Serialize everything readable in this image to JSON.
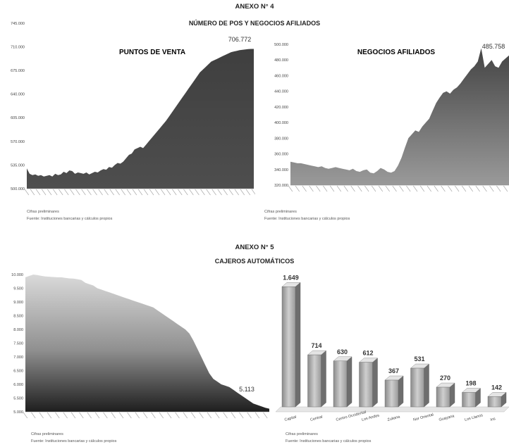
{
  "anexo4": {
    "heading": "ANEXO N° 4",
    "subheading": "NÚMERO DE POS Y NEGOCIOS AFILIADOS",
    "note1": "Cifras preliminares",
    "note2": "Fuente: Instituciones bancarias y cálculos propios",
    "note3": "Cifras preliminares",
    "note4": "Fuente: Instituciones bancarias y cálculos propios"
  },
  "anexo5": {
    "heading": "ANEXO N° 5",
    "subheading": "CAJEROS AUTOMÁTICOS",
    "note1": "Cifras preliminares",
    "note2": "Fuente: Instituciones bancarias y cálculos propios",
    "note3": "Cifras preliminares",
    "note4": "Fuente: Instituciones bancarias y cálculos propios"
  },
  "colors": {
    "area_dark": "#505050",
    "area_light": "#cfcfcf",
    "bar_face": "#bdbdbd"
  },
  "chart_data": [
    {
      "type": "area",
      "title": "PUNTOS DE VENTA",
      "ylim": [
        500000,
        750000
      ],
      "yticks": [
        500000,
        535000,
        570000,
        605000,
        640000,
        675000,
        710000,
        745000
      ],
      "ytick_labels": [
        "500.000",
        "535.000",
        "570.000",
        "605.000",
        "640.000",
        "675.000",
        "710.000",
        "745.000"
      ],
      "annotation": "706.772",
      "values": [
        530000,
        522000,
        520000,
        521000,
        519000,
        520000,
        518000,
        519000,
        520000,
        518000,
        522000,
        520000,
        521000,
        525000,
        523000,
        527000,
        526000,
        522000,
        524000,
        523000,
        522000,
        524000,
        521000,
        523000,
        525000,
        524000,
        527000,
        529000,
        528000,
        532000,
        531000,
        535000,
        538000,
        537000,
        540000,
        545000,
        550000,
        552000,
        558000,
        560000,
        562000,
        560000,
        565000,
        570000,
        575000,
        580000,
        585000,
        590000,
        595000,
        600000,
        606000,
        612000,
        618000,
        624000,
        630000,
        636000,
        642000,
        648000,
        654000,
        660000,
        666000,
        672000,
        676000,
        680000,
        684000,
        688000,
        690000,
        692000,
        694000,
        696000,
        698000,
        700000,
        702000,
        703000,
        704000,
        705000,
        705500,
        706000,
        706500,
        706772,
        706772
      ]
    },
    {
      "type": "area",
      "title": "NEGOCIOS AFILIADOS",
      "ylim": [
        320000,
        500000
      ],
      "yticks": [
        320000,
        340000,
        360000,
        380000,
        400000,
        420000,
        440000,
        460000,
        480000,
        500000
      ],
      "ytick_labels": [
        "320.000",
        "340.000",
        "360.000",
        "380.000",
        "400.000",
        "420.000",
        "440.000",
        "460.000",
        "480.000",
        "500.000"
      ],
      "annotation": "485.758",
      "values": [
        350000,
        349000,
        348000,
        348000,
        347000,
        346000,
        345000,
        344000,
        343000,
        344000,
        342000,
        341000,
        342000,
        343000,
        342000,
        341000,
        340000,
        339000,
        341000,
        338000,
        337000,
        339000,
        340000,
        336000,
        335000,
        338000,
        342000,
        340000,
        337000,
        336000,
        338000,
        345000,
        355000,
        368000,
        380000,
        385000,
        390000,
        388000,
        395000,
        400000,
        405000,
        415000,
        425000,
        432000,
        438000,
        440000,
        437000,
        442000,
        445000,
        450000,
        456000,
        462000,
        468000,
        472000,
        478000,
        495000,
        470000,
        475000,
        480000,
        472000,
        470000,
        478000,
        482000,
        485758
      ]
    },
    {
      "type": "area",
      "ylim": [
        5000,
        10000
      ],
      "yticks": [
        5000,
        5500,
        6000,
        6500,
        7000,
        7500,
        8000,
        8500,
        9000,
        9500,
        10000
      ],
      "ytick_labels": [
        "5.000",
        "5.500",
        "6.000",
        "6.500",
        "7.000",
        "7.500",
        "8.000",
        "8.500",
        "9.000",
        "9.500",
        "10.000"
      ],
      "annotation": "5.113",
      "values": [
        9900,
        9950,
        10000,
        9980,
        9950,
        9930,
        9920,
        9910,
        9900,
        9900,
        9880,
        9860,
        9850,
        9830,
        9800,
        9700,
        9650,
        9600,
        9500,
        9450,
        9400,
        9350,
        9300,
        9250,
        9200,
        9150,
        9100,
        9050,
        9000,
        8950,
        8900,
        8850,
        8800,
        8700,
        8600,
        8500,
        8400,
        8300,
        8200,
        8100,
        8000,
        7850,
        7600,
        7300,
        7000,
        6700,
        6400,
        6200,
        6100,
        6000,
        5950,
        5900,
        5800,
        5700,
        5600,
        5500,
        5400,
        5300,
        5250,
        5200,
        5150,
        5113
      ]
    },
    {
      "type": "bar",
      "categories": [
        "Capital",
        "Central",
        "Centro Occidental",
        "Los Andes",
        "Zuliana",
        "Nor Oriental",
        "Guayana",
        "Los Llanos",
        "Ins"
      ],
      "values": [
        1649,
        714,
        630,
        612,
        367,
        531,
        270,
        198,
        142
      ],
      "value_labels": [
        "1.649",
        "714",
        "630",
        "612",
        "367",
        "531",
        "270",
        "198",
        "142"
      ],
      "ylim": [
        0,
        1700
      ]
    }
  ]
}
